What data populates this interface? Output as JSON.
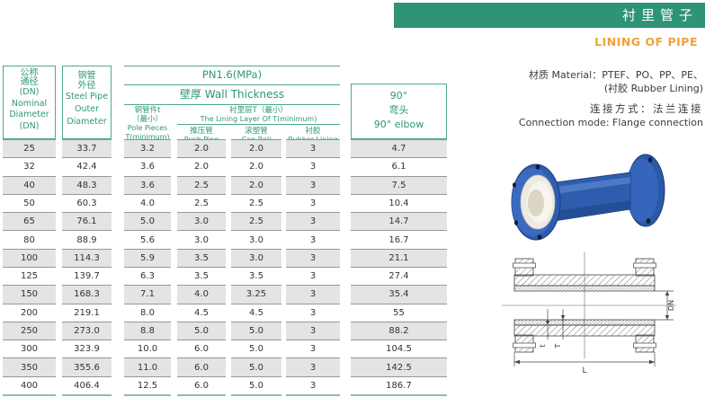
{
  "page": {
    "title": "衬里管子",
    "subtitle": "LINING OF PIPE"
  },
  "info": {
    "material_cn_en": "材质 Material：PTEF、PO、PP、PE、",
    "material_note": "(衬胶 Rubber Lining)",
    "connection_cn": "连接方式：法兰连接",
    "connection_en": "Connection mode: Flange connection"
  },
  "colors": {
    "accent_green": "#2E9377",
    "accent_orange": "#F0A13C",
    "row_shade": "#E4E4E4"
  },
  "table": {
    "pressure_title": "PN1.6(MPa)",
    "wall_title": "壁厚 Wall Thickness",
    "header": {
      "col1_lines": [
        "公称",
        "通径",
        "(DN)",
        "Nominal",
        "Diameter",
        "(DN)"
      ],
      "col2_lines": [
        "钢管",
        "外径",
        "Steel Pipe",
        "Outer",
        "Diameter"
      ],
      "pole_lines": [
        "钢管件t",
        "（最小）",
        "Pole Pieces",
        "T(minimum)"
      ],
      "lining_cn": "衬里层T（最小）",
      "lining_en": "The Lining Layer Of T(minimum)",
      "subs": [
        {
          "cn": "推压管",
          "en": "Push Pipe"
        },
        {
          "cn": "滚塑管",
          "en": "Can Roll"
        },
        {
          "cn": "衬胶",
          "en": "Rubber Lining"
        }
      ],
      "elbow_lines": [
        "90°",
        "弯头",
        "90° elbow"
      ]
    },
    "columns": [
      {
        "name": "nominal-diameter-dn",
        "values": [
          "25",
          "32",
          "40",
          "50",
          "65",
          "80",
          "100",
          "125",
          "150",
          "200",
          "250",
          "300",
          "350",
          "400"
        ]
      },
      {
        "name": "steel-pipe-outer-diameter",
        "values": [
          "33.7",
          "42.4",
          "48.3",
          "60.3",
          "76.1",
          "88.9",
          "114.3",
          "139.7",
          "168.3",
          "219.1",
          "273.0",
          "323.9",
          "355.6",
          "406.4"
        ]
      },
      {
        "name": "pole-pieces-t-min",
        "values": [
          "3.2",
          "3.6",
          "3.6",
          "4.0",
          "5.0",
          "5.6",
          "5.9",
          "6.3",
          "7.1",
          "8.0",
          "8.8",
          "10.0",
          "11.0",
          "12.5"
        ]
      },
      {
        "name": "push-pipe",
        "values": [
          "2.0",
          "2.0",
          "2.5",
          "2.5",
          "3.0",
          "3.0",
          "3.5",
          "3.5",
          "4.0",
          "4.5",
          "5.0",
          "6.0",
          "6.0",
          "6.0"
        ]
      },
      {
        "name": "can-roll",
        "values": [
          "2.0",
          "2.0",
          "2.0",
          "2.5",
          "2.5",
          "3.0",
          "3.0",
          "3.5",
          "3.25",
          "4.5",
          "5.0",
          "5.0",
          "5.0",
          "5.0"
        ]
      },
      {
        "name": "rubber-lining",
        "values": [
          "3",
          "3",
          "3",
          "3",
          "3",
          "3",
          "3",
          "3",
          "3",
          "3",
          "3",
          "3",
          "3",
          "3"
        ]
      },
      {
        "name": "elbow-90",
        "values": [
          "4.7",
          "6.1",
          "7.5",
          "10.4",
          "14.7",
          "16.7",
          "21.1",
          "27.4",
          "35.4",
          "55",
          "88.2",
          "104.5",
          "142.5",
          "186.7"
        ]
      }
    ]
  },
  "drawing": {
    "labels": {
      "dn": "DN",
      "t": "t",
      "T": "T",
      "L": "L"
    }
  }
}
